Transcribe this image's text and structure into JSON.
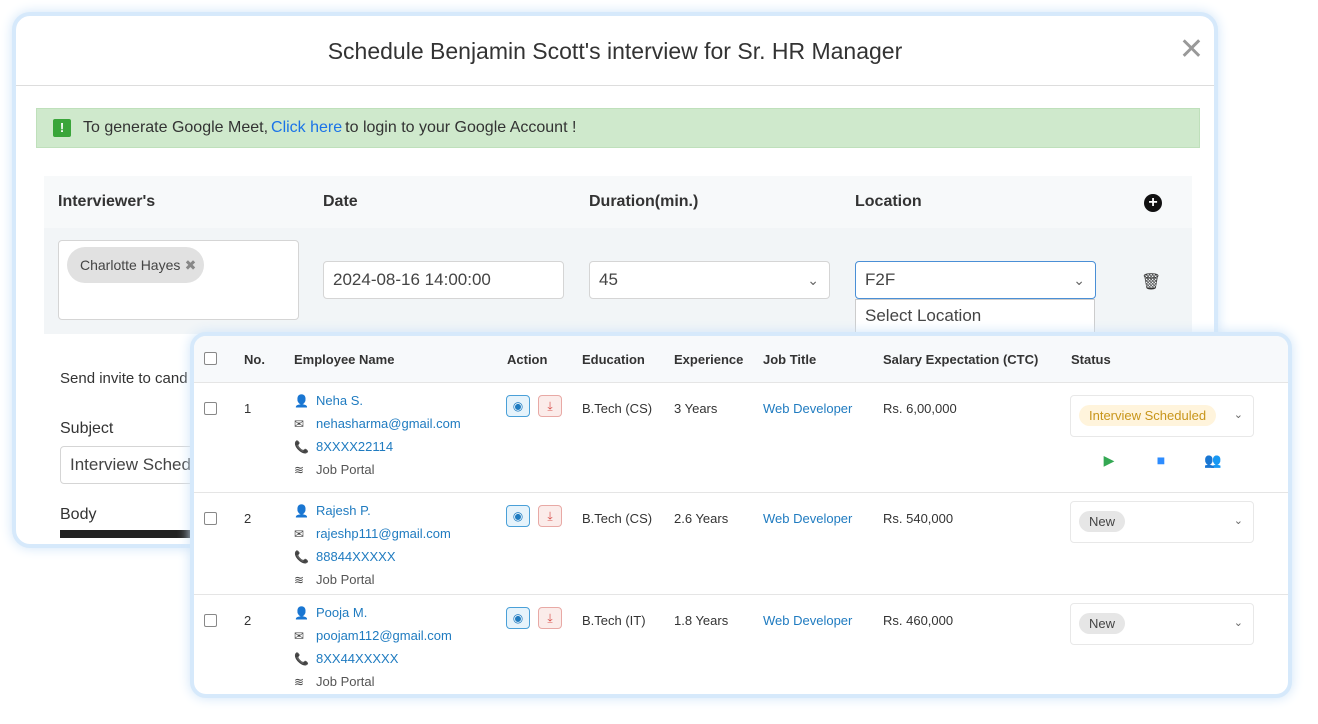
{
  "modal": {
    "title": "Schedule Benjamin Scott's interview for Sr. HR Manager",
    "alert": {
      "prefix": "To generate Google Meet,",
      "link": "Click here",
      "suffix": "to login to your Google Account !"
    },
    "columns": [
      "Interviewer's",
      "Date",
      "Duration(min.)",
      "Location"
    ],
    "interviewer": "Charlotte Hayes",
    "date": "2024-08-16 14:00:00",
    "duration": "45",
    "location": "F2F",
    "location_option": "Select Location",
    "send_invite": "Send invite to cand",
    "subject_label": "Subject",
    "subject_value": "Interview Sched",
    "body_label": "Body"
  },
  "table": {
    "headers": [
      "No.",
      "Employee Name",
      "Action",
      "Education",
      "Experience",
      "Job Title",
      "Salary Expectation (CTC)",
      "Status"
    ],
    "rows": [
      {
        "no": "1",
        "name": "Neha S.",
        "email": "nehasharma@gmail.com",
        "phone": "8XXXX22114",
        "source": "Job Portal",
        "education": "B.Tech (CS)",
        "experience": "3 Years",
        "job": "Web Developer",
        "salary": "Rs. 6,00,000",
        "status": "Interview Scheduled"
      },
      {
        "no": "2",
        "name": "Rajesh P.",
        "email": "rajeshp111@gmail.com",
        "phone": "88844XXXXX",
        "source": "Job Portal",
        "education": "B.Tech (CS)",
        "experience": "2.6 Years",
        "job": "Web Developer",
        "salary": "Rs. 540,000",
        "status": "New"
      },
      {
        "no": "2",
        "name": "Pooja M.",
        "email": "poojam112@gmail.com",
        "phone": "8XX44XXXXX",
        "source": "Job Portal",
        "education": "B.Tech (IT)",
        "experience": "1.8 Years",
        "job": "Web Developer",
        "salary": "Rs. 460,000",
        "status": "New"
      }
    ]
  },
  "colors": {
    "link": "#1f7bc0",
    "scheduled_bg": "#fff4dc",
    "scheduled_text": "#c8951a",
    "new_bg": "#e6e6e6"
  }
}
